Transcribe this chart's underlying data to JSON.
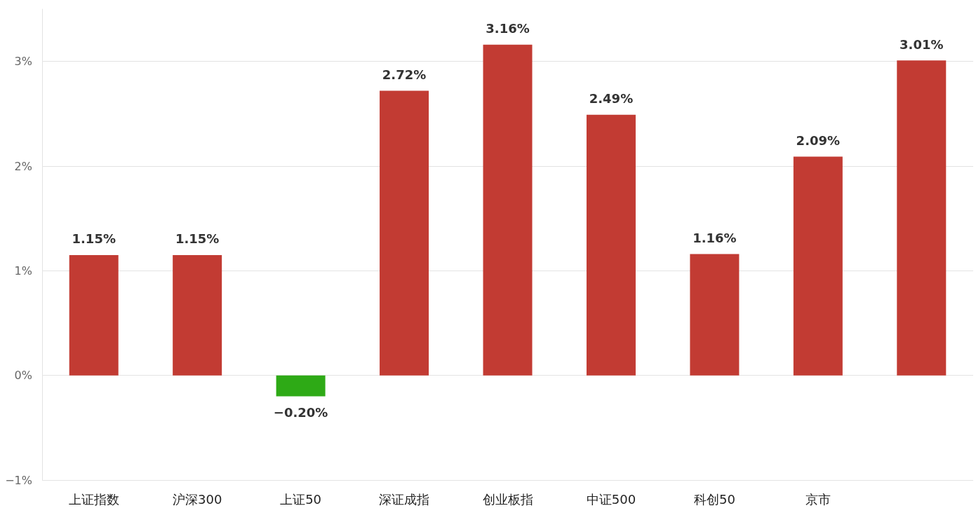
{
  "chart_data": {
    "type": "bar",
    "categories": [
      "上证指数",
      "沪深300",
      "上证50",
      "深证成指",
      "创业板指",
      "中证500",
      "科创50",
      "京市",
      null
    ],
    "values": [
      1.15,
      1.15,
      -0.2,
      2.72,
      3.16,
      2.49,
      1.16,
      2.09,
      3.01
    ],
    "colors": [
      "#c23b33",
      "#c23b33",
      "#2eaa16",
      "#c23b33",
      "#c23b33",
      "#c23b33",
      "#c23b33",
      "#c23b33",
      "#c23b33"
    ],
    "value_labels": [
      "1.15%",
      "1.15%",
      "−0.20%",
      "2.72%",
      "3.16%",
      "2.49%",
      "1.16%",
      "2.09%",
      "3.01%"
    ],
    "ylim": [
      -1,
      3.5
    ],
    "yticks": [
      {
        "value": -1,
        "label": "−1%"
      },
      {
        "value": 0,
        "label": "0%"
      },
      {
        "value": 1,
        "label": "1%"
      },
      {
        "value": 2,
        "label": "2%"
      },
      {
        "value": 3,
        "label": "3%"
      }
    ],
    "grid": "y"
  }
}
